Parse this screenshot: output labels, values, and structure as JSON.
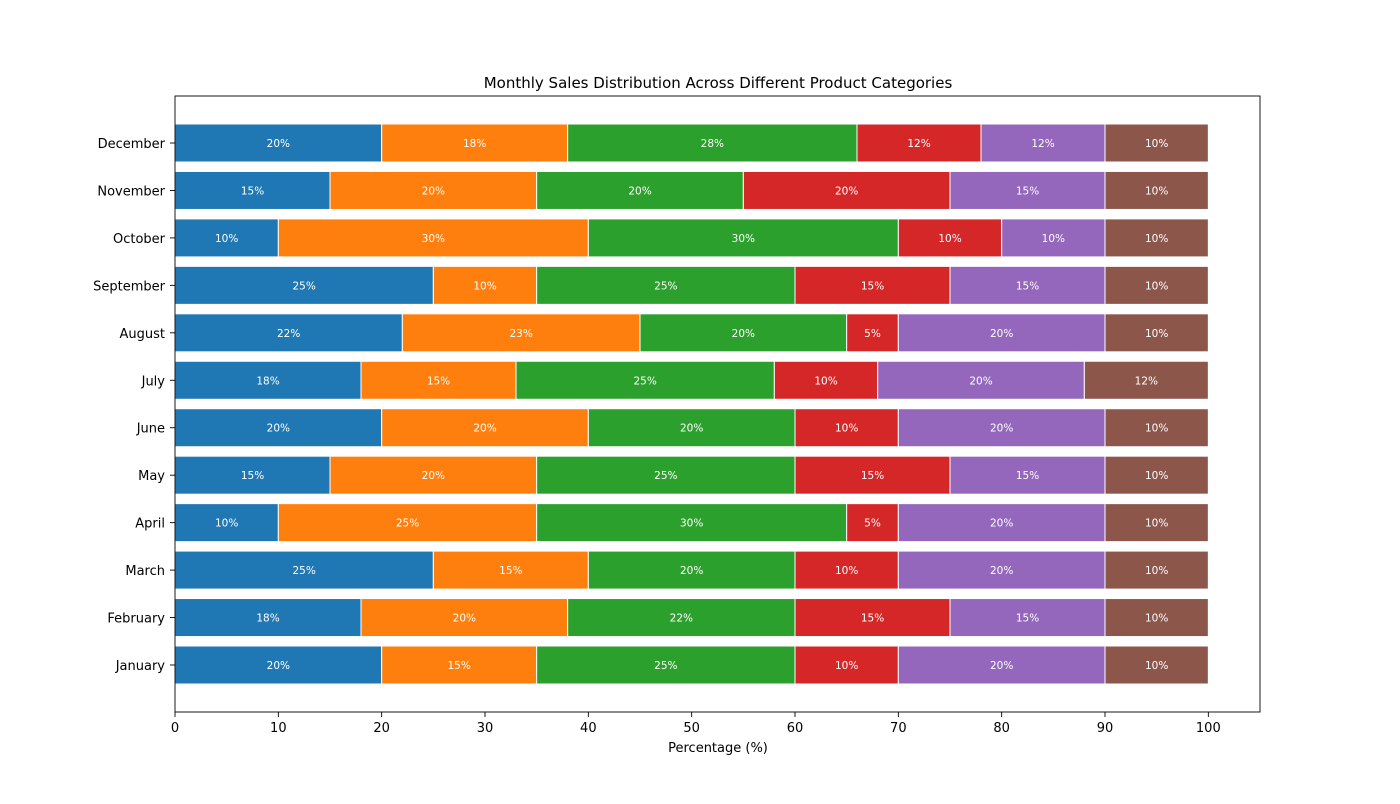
{
  "chart_data": {
    "type": "bar",
    "orientation": "horizontal",
    "stacked": true,
    "title": "Monthly Sales Distribution Across Different Product Categories",
    "xlabel": "Percentage (%)",
    "ylabel": "",
    "xlim": [
      0,
      105
    ],
    "x_ticks": [
      0,
      10,
      20,
      30,
      40,
      50,
      60,
      70,
      80,
      90,
      100
    ],
    "grid": false,
    "legend": "none",
    "categories": [
      "January",
      "February",
      "March",
      "April",
      "May",
      "June",
      "July",
      "August",
      "September",
      "October",
      "November",
      "December"
    ],
    "series": [
      {
        "color": "#1f77b4",
        "values": [
          20,
          18,
          25,
          10,
          15,
          20,
          18,
          22,
          25,
          10,
          15,
          20
        ]
      },
      {
        "color": "#ff7f0e",
        "values": [
          15,
          20,
          15,
          25,
          20,
          20,
          15,
          23,
          10,
          30,
          20,
          18
        ]
      },
      {
        "color": "#2ca02c",
        "values": [
          25,
          22,
          20,
          30,
          25,
          20,
          25,
          20,
          25,
          30,
          20,
          28
        ]
      },
      {
        "color": "#d62728",
        "values": [
          10,
          15,
          10,
          5,
          15,
          10,
          10,
          5,
          15,
          10,
          20,
          12
        ]
      },
      {
        "color": "#9467bd",
        "values": [
          20,
          15,
          20,
          20,
          15,
          20,
          20,
          20,
          15,
          10,
          15,
          12
        ]
      },
      {
        "color": "#8c564b",
        "values": [
          10,
          10,
          10,
          10,
          10,
          10,
          12,
          10,
          10,
          10,
          10,
          10
        ]
      }
    ],
    "value_label_suffix": "%"
  }
}
